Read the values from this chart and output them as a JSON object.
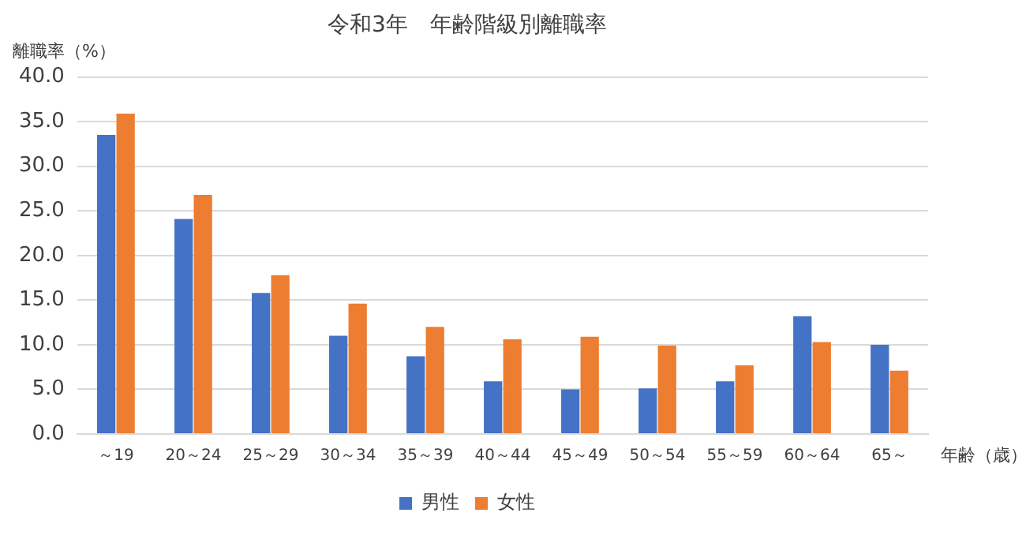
{
  "chart_data": {
    "type": "bar",
    "title": "令和3年　年齢階級別離職率",
    "xlabel": "年齢（歳）",
    "ylabel": "離職率（%）",
    "categories": [
      "～19",
      "20～24",
      "25～29",
      "30～34",
      "35～39",
      "40～44",
      "45～49",
      "50～54",
      "55～59",
      "60～64",
      "65～"
    ],
    "series": [
      {
        "name": "男性",
        "color": "#4472c4",
        "values": [
          33.5,
          24.1,
          15.8,
          11.0,
          8.7,
          5.9,
          5.0,
          5.1,
          5.9,
          13.2,
          10.0
        ]
      },
      {
        "name": "女性",
        "color": "#ed7d31",
        "values": [
          35.9,
          26.8,
          17.8,
          14.6,
          12.0,
          10.6,
          10.9,
          9.9,
          7.7,
          10.3,
          7.1
        ]
      }
    ],
    "ylim": [
      0,
      40
    ],
    "yticks": [
      {
        "value": 0,
        "label": "0.0"
      },
      {
        "value": 5,
        "label": "5.0"
      },
      {
        "value": 10,
        "label": "10.0"
      },
      {
        "value": 15,
        "label": "15.0"
      },
      {
        "value": 20,
        "label": "20.0"
      },
      {
        "value": 25,
        "label": "25.0"
      },
      {
        "value": 30,
        "label": "30.0"
      },
      {
        "value": 35,
        "label": "35.0"
      },
      {
        "value": 40,
        "label": "40.0"
      }
    ],
    "grid": "y",
    "legend": "bottom"
  }
}
